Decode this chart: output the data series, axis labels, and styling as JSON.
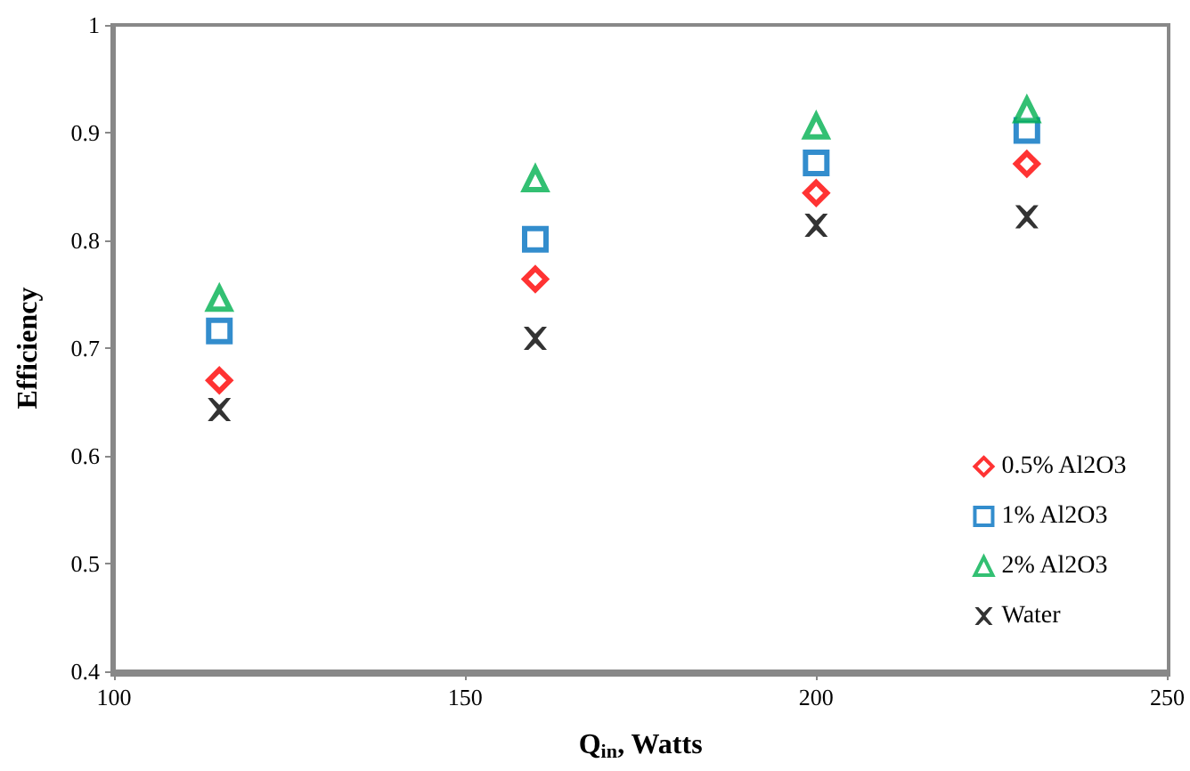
{
  "chart_data": {
    "type": "scatter",
    "xlabel": "Q$_{in}$, Watts",
    "ylabel": "Efficiency",
    "x": [
      115,
      160,
      200,
      230
    ],
    "series": [
      {
        "name": "0.5% Al2O3",
        "color": "#ff0000",
        "marker": "diamond",
        "values": [
          0.67,
          0.764,
          0.844,
          0.871
        ]
      },
      {
        "name": "1% Al2O3",
        "color": "#0070c0",
        "marker": "square",
        "values": [
          0.716,
          0.801,
          0.872,
          0.902
        ]
      },
      {
        "name": "2% Al2O3",
        "color": "#00b050",
        "marker": "triangle",
        "values": [
          0.746,
          0.857,
          0.906,
          0.921
        ]
      },
      {
        "name": "Water",
        "color": "#000000",
        "marker": "cross",
        "values": [
          0.643,
          0.709,
          0.814,
          0.822
        ]
      }
    ],
    "xlim": [
      100,
      250
    ],
    "xticks": [
      100,
      150,
      200,
      250
    ],
    "ylim": [
      0.4,
      1
    ],
    "yticks": [
      0.4,
      0.5,
      0.6,
      0.7,
      0.8,
      0.9,
      1
    ],
    "grid": false,
    "legend": "bottom right"
  }
}
